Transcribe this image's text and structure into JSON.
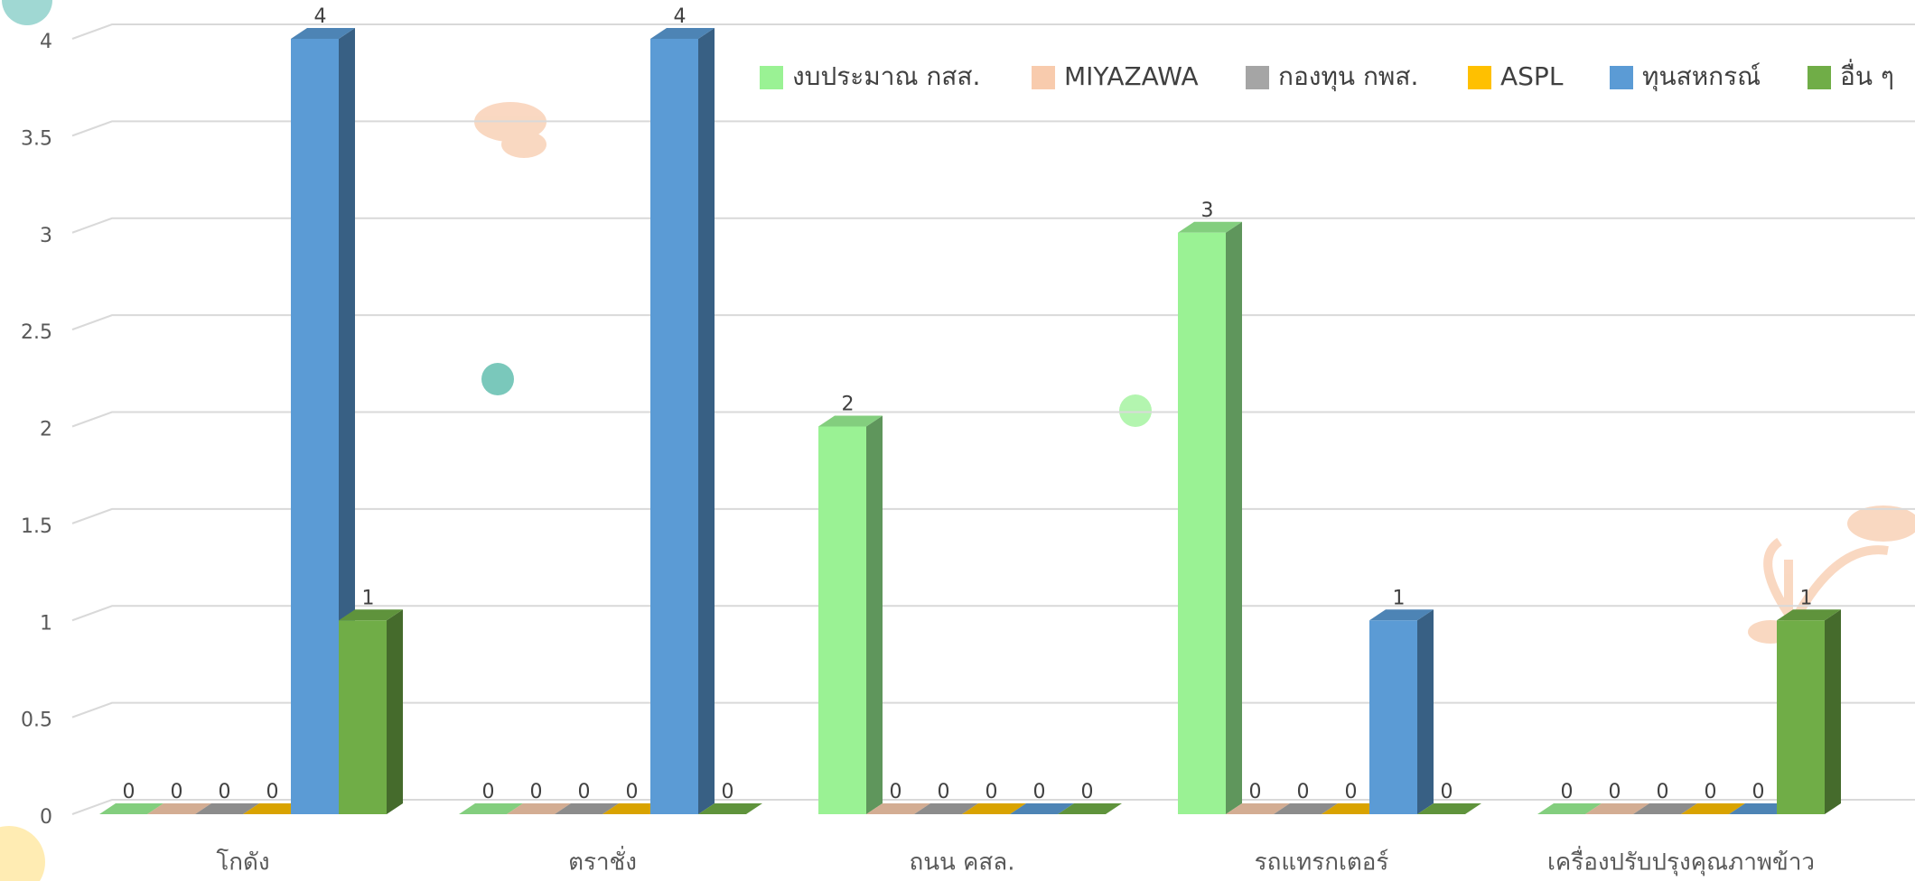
{
  "chart_data": {
    "type": "bar3d",
    "categories": [
      "โกดัง",
      "ตราชั่ง",
      "ถนน คสล.",
      "รถแทรกเตอร์",
      "เครื่องปรับปรุงคุณภาพข้าว"
    ],
    "series": [
      {
        "name": "งบประมาณ กสส.",
        "color": "#9af294",
        "values": [
          0,
          0,
          2,
          3,
          0
        ]
      },
      {
        "name": "MIYAZAWA",
        "color": "#f8cbad",
        "values": [
          0,
          0,
          0,
          0,
          0
        ]
      },
      {
        "name": "กองทุน กพส.",
        "color": "#a5a5a5",
        "values": [
          0,
          0,
          0,
          0,
          0
        ]
      },
      {
        "name": "ASPL",
        "color": "#ffc000",
        "values": [
          0,
          0,
          0,
          0,
          0
        ]
      },
      {
        "name": "ทุนสหกรณ์",
        "color": "#5b9bd5",
        "values": [
          4,
          4,
          0,
          1,
          0
        ]
      },
      {
        "name": "อื่น ๆ",
        "color": "#70ad47",
        "values": [
          1,
          0,
          0,
          0,
          1
        ]
      }
    ],
    "ylim": [
      0,
      4
    ],
    "yticks": [
      0,
      0.5,
      1,
      1.5,
      2,
      2.5,
      3,
      3.5,
      4
    ],
    "grid": true,
    "legend": "top-right"
  }
}
